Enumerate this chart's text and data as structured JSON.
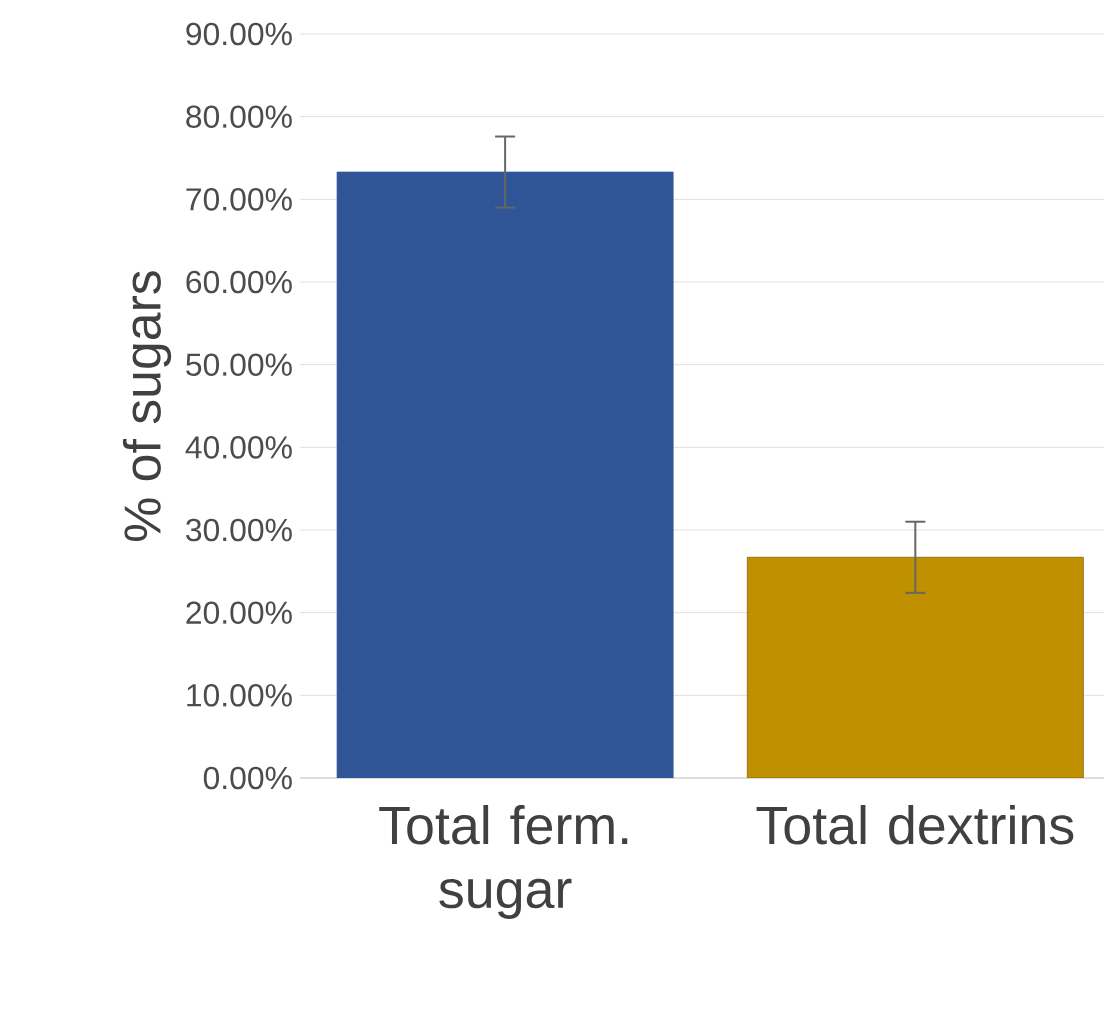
{
  "chart_data": {
    "type": "bar",
    "ylabel": "% of sugars",
    "categories": [
      "Total ferm. sugar",
      "Total dextrins"
    ],
    "values": [
      73.3,
      26.7
    ],
    "errors": [
      4.3,
      4.3
    ],
    "colors": [
      "#2f5597",
      "#bf9000"
    ],
    "ylim": [
      0,
      90
    ],
    "yticks": [
      {
        "value": 0,
        "label": "0.00%"
      },
      {
        "value": 10,
        "label": "10.00%"
      },
      {
        "value": 20,
        "label": "20.00%"
      },
      {
        "value": 30,
        "label": "30.00%"
      },
      {
        "value": 40,
        "label": "40.00%"
      },
      {
        "value": 50,
        "label": "50.00%"
      },
      {
        "value": 60,
        "label": "60.00%"
      },
      {
        "value": 70,
        "label": "70.00%"
      },
      {
        "value": 80,
        "label": "80.00%"
      },
      {
        "value": 90,
        "label": "90.00%"
      }
    ],
    "grid": "y"
  }
}
